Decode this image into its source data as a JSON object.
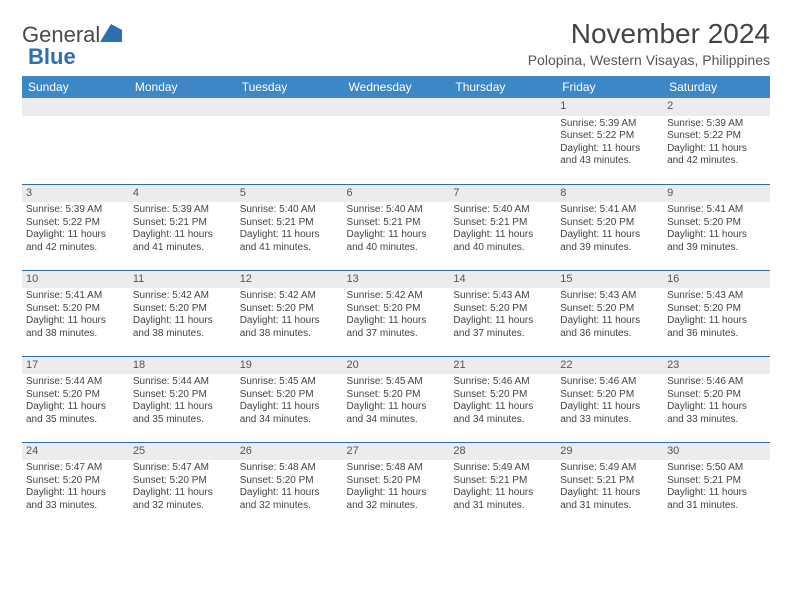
{
  "logo": {
    "text1": "General",
    "text2": "Blue"
  },
  "title": "November 2024",
  "location": "Polopina, Western Visayas, Philippines",
  "colors": {
    "header_bg": "#3d87c7",
    "header_text": "#ffffff",
    "daynum_bg": "#ececec",
    "rule": "#2f6fb0",
    "text": "#444444"
  },
  "dow": [
    "Sunday",
    "Monday",
    "Tuesday",
    "Wednesday",
    "Thursday",
    "Friday",
    "Saturday"
  ],
  "weeks": [
    [
      {
        "n": "",
        "sr": "",
        "ss": "",
        "dl": ""
      },
      {
        "n": "",
        "sr": "",
        "ss": "",
        "dl": ""
      },
      {
        "n": "",
        "sr": "",
        "ss": "",
        "dl": ""
      },
      {
        "n": "",
        "sr": "",
        "ss": "",
        "dl": ""
      },
      {
        "n": "",
        "sr": "",
        "ss": "",
        "dl": ""
      },
      {
        "n": "1",
        "sr": "Sunrise: 5:39 AM",
        "ss": "Sunset: 5:22 PM",
        "dl": "Daylight: 11 hours and 43 minutes."
      },
      {
        "n": "2",
        "sr": "Sunrise: 5:39 AM",
        "ss": "Sunset: 5:22 PM",
        "dl": "Daylight: 11 hours and 42 minutes."
      }
    ],
    [
      {
        "n": "3",
        "sr": "Sunrise: 5:39 AM",
        "ss": "Sunset: 5:22 PM",
        "dl": "Daylight: 11 hours and 42 minutes."
      },
      {
        "n": "4",
        "sr": "Sunrise: 5:39 AM",
        "ss": "Sunset: 5:21 PM",
        "dl": "Daylight: 11 hours and 41 minutes."
      },
      {
        "n": "5",
        "sr": "Sunrise: 5:40 AM",
        "ss": "Sunset: 5:21 PM",
        "dl": "Daylight: 11 hours and 41 minutes."
      },
      {
        "n": "6",
        "sr": "Sunrise: 5:40 AM",
        "ss": "Sunset: 5:21 PM",
        "dl": "Daylight: 11 hours and 40 minutes."
      },
      {
        "n": "7",
        "sr": "Sunrise: 5:40 AM",
        "ss": "Sunset: 5:21 PM",
        "dl": "Daylight: 11 hours and 40 minutes."
      },
      {
        "n": "8",
        "sr": "Sunrise: 5:41 AM",
        "ss": "Sunset: 5:20 PM",
        "dl": "Daylight: 11 hours and 39 minutes."
      },
      {
        "n": "9",
        "sr": "Sunrise: 5:41 AM",
        "ss": "Sunset: 5:20 PM",
        "dl": "Daylight: 11 hours and 39 minutes."
      }
    ],
    [
      {
        "n": "10",
        "sr": "Sunrise: 5:41 AM",
        "ss": "Sunset: 5:20 PM",
        "dl": "Daylight: 11 hours and 38 minutes."
      },
      {
        "n": "11",
        "sr": "Sunrise: 5:42 AM",
        "ss": "Sunset: 5:20 PM",
        "dl": "Daylight: 11 hours and 38 minutes."
      },
      {
        "n": "12",
        "sr": "Sunrise: 5:42 AM",
        "ss": "Sunset: 5:20 PM",
        "dl": "Daylight: 11 hours and 38 minutes."
      },
      {
        "n": "13",
        "sr": "Sunrise: 5:42 AM",
        "ss": "Sunset: 5:20 PM",
        "dl": "Daylight: 11 hours and 37 minutes."
      },
      {
        "n": "14",
        "sr": "Sunrise: 5:43 AM",
        "ss": "Sunset: 5:20 PM",
        "dl": "Daylight: 11 hours and 37 minutes."
      },
      {
        "n": "15",
        "sr": "Sunrise: 5:43 AM",
        "ss": "Sunset: 5:20 PM",
        "dl": "Daylight: 11 hours and 36 minutes."
      },
      {
        "n": "16",
        "sr": "Sunrise: 5:43 AM",
        "ss": "Sunset: 5:20 PM",
        "dl": "Daylight: 11 hours and 36 minutes."
      }
    ],
    [
      {
        "n": "17",
        "sr": "Sunrise: 5:44 AM",
        "ss": "Sunset: 5:20 PM",
        "dl": "Daylight: 11 hours and 35 minutes."
      },
      {
        "n": "18",
        "sr": "Sunrise: 5:44 AM",
        "ss": "Sunset: 5:20 PM",
        "dl": "Daylight: 11 hours and 35 minutes."
      },
      {
        "n": "19",
        "sr": "Sunrise: 5:45 AM",
        "ss": "Sunset: 5:20 PM",
        "dl": "Daylight: 11 hours and 34 minutes."
      },
      {
        "n": "20",
        "sr": "Sunrise: 5:45 AM",
        "ss": "Sunset: 5:20 PM",
        "dl": "Daylight: 11 hours and 34 minutes."
      },
      {
        "n": "21",
        "sr": "Sunrise: 5:46 AM",
        "ss": "Sunset: 5:20 PM",
        "dl": "Daylight: 11 hours and 34 minutes."
      },
      {
        "n": "22",
        "sr": "Sunrise: 5:46 AM",
        "ss": "Sunset: 5:20 PM",
        "dl": "Daylight: 11 hours and 33 minutes."
      },
      {
        "n": "23",
        "sr": "Sunrise: 5:46 AM",
        "ss": "Sunset: 5:20 PM",
        "dl": "Daylight: 11 hours and 33 minutes."
      }
    ],
    [
      {
        "n": "24",
        "sr": "Sunrise: 5:47 AM",
        "ss": "Sunset: 5:20 PM",
        "dl": "Daylight: 11 hours and 33 minutes."
      },
      {
        "n": "25",
        "sr": "Sunrise: 5:47 AM",
        "ss": "Sunset: 5:20 PM",
        "dl": "Daylight: 11 hours and 32 minutes."
      },
      {
        "n": "26",
        "sr": "Sunrise: 5:48 AM",
        "ss": "Sunset: 5:20 PM",
        "dl": "Daylight: 11 hours and 32 minutes."
      },
      {
        "n": "27",
        "sr": "Sunrise: 5:48 AM",
        "ss": "Sunset: 5:20 PM",
        "dl": "Daylight: 11 hours and 32 minutes."
      },
      {
        "n": "28",
        "sr": "Sunrise: 5:49 AM",
        "ss": "Sunset: 5:21 PM",
        "dl": "Daylight: 11 hours and 31 minutes."
      },
      {
        "n": "29",
        "sr": "Sunrise: 5:49 AM",
        "ss": "Sunset: 5:21 PM",
        "dl": "Daylight: 11 hours and 31 minutes."
      },
      {
        "n": "30",
        "sr": "Sunrise: 5:50 AM",
        "ss": "Sunset: 5:21 PM",
        "dl": "Daylight: 11 hours and 31 minutes."
      }
    ]
  ]
}
